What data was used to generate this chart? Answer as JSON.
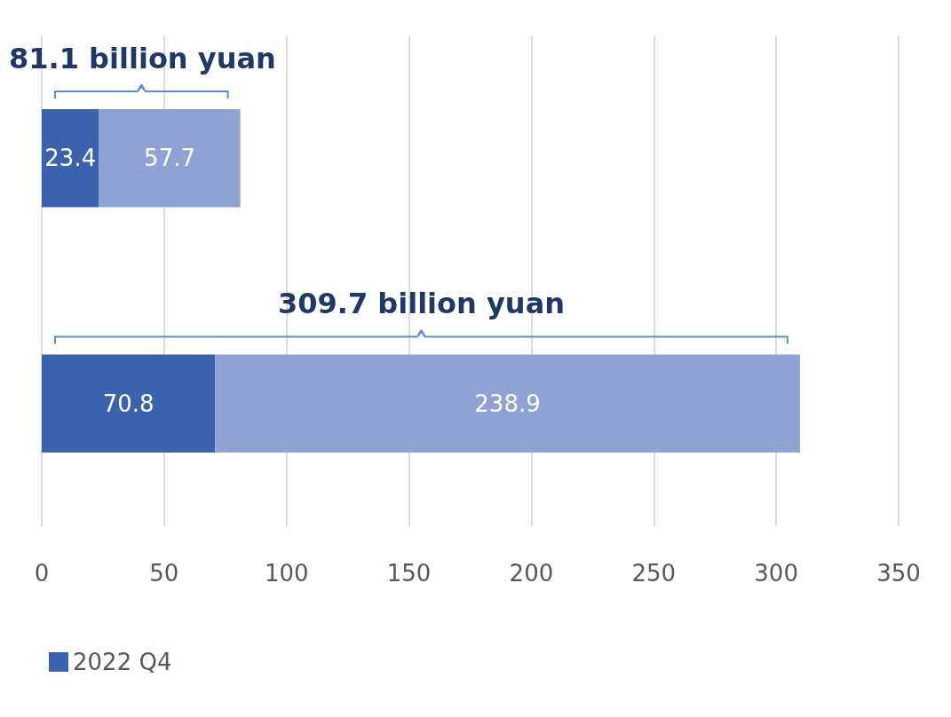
{
  "chart_data": {
    "type": "bar",
    "orientation": "horizontal",
    "stacked": true,
    "categories": [
      null,
      null
    ],
    "series": [
      {
        "name": "2022 Q4",
        "color": "#3b62ad",
        "values": [
          23.4,
          70.8
        ]
      },
      {
        "color": "#8ea3d4",
        "values": [
          57.7,
          238.9
        ]
      }
    ],
    "totals": [
      "81.1 billion yuan",
      "309.7 billion yuan"
    ],
    "data_labels": true,
    "xlim": [
      0,
      350
    ],
    "xticks": [
      0,
      50,
      100,
      150,
      200,
      250,
      300,
      350
    ],
    "grid": "x",
    "legend": "bottom left"
  }
}
